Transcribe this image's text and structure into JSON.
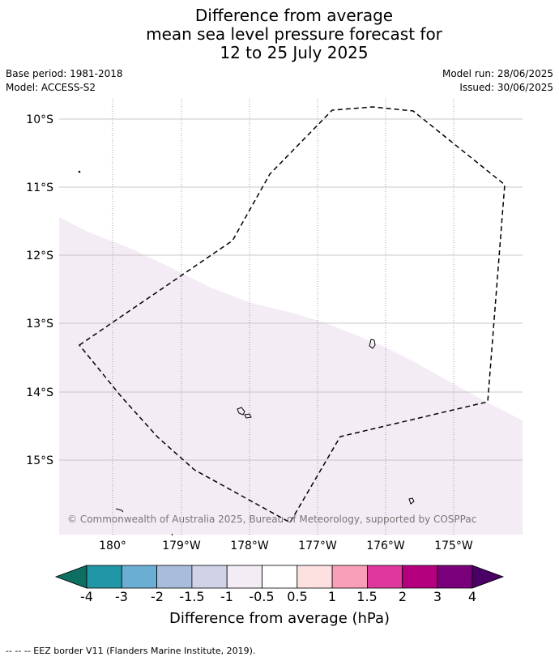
{
  "title": {
    "line1": "Difference from average",
    "line2": "mean sea level pressure forecast for",
    "line3": "12 to 25 July 2025"
  },
  "meta": {
    "base_period": "Base period: 1981-2018",
    "model": "Model: ACCESS-S2",
    "model_run": "Model run: 28/06/2025",
    "issued": "Issued: 30/06/2025"
  },
  "map": {
    "lat_labels": [
      "10°S",
      "11°S",
      "12°S",
      "13°S",
      "14°S",
      "15°S"
    ],
    "lon_labels": [
      "180°",
      "179°W",
      "178°W",
      "177°W",
      "176°W",
      "175°W"
    ],
    "shaded_colour": "#f4ecf5",
    "copyright": "© Commonwealth of Australia 2025, Bureau of Meteorology, supported by COSPPac"
  },
  "colorbar": {
    "title": "Difference from average (hPa)",
    "tick_labels": [
      "-4",
      "-3",
      "-2",
      "-1.5",
      "-1",
      "-0.5",
      "0.5",
      "1",
      "1.5",
      "2",
      "3",
      "4"
    ],
    "colors": [
      "#0d6e61",
      "#2196a4",
      "#6baed4",
      "#a8bcdc",
      "#d0d2e7",
      "#f4ecf5",
      "#ffffff",
      "#fde0e0",
      "#f8a0b9",
      "#e0379c",
      "#b4007f",
      "#79007a",
      "#4a0065"
    ]
  },
  "footer": {
    "legend": "-- -- -- EEZ border V11 (Flanders Marine Institute, 2019)."
  }
}
